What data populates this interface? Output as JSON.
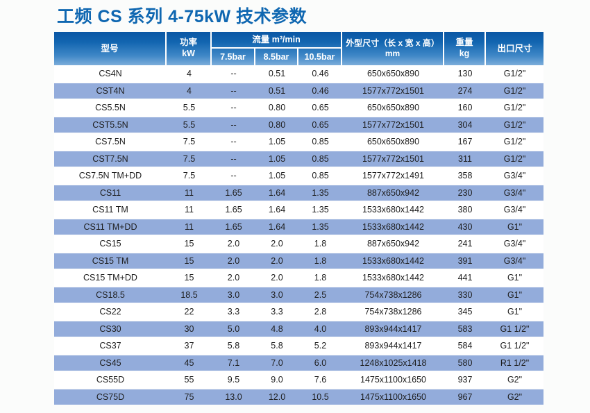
{
  "page": {
    "title": "工频 CS 系列 4-75kW 技术参数"
  },
  "colors": {
    "title_blue": "#0f67b1",
    "header_gradient_top": "#0a56a4",
    "header_gradient_bottom": "#7cadda",
    "row_stripe": "#93acdb",
    "row_text": "#1d1d1d"
  },
  "table": {
    "header": {
      "model": "型号",
      "power_line1": "功率",
      "power_line2": "kW",
      "flow_group": "流量 m³/min",
      "flow_cols": [
        "7.5bar",
        "8.5bar",
        "10.5bar"
      ],
      "dims_line1": "外型尺寸（长 x 宽 x 高）",
      "dims_line2": "mm",
      "weight_line1": "重量",
      "weight_line2": "kg",
      "outlet": "出口尺寸"
    },
    "rows": [
      {
        "model": "CS4N",
        "power": "4",
        "f75": "--",
        "f85": "0.51",
        "f105": "0.46",
        "dims": "650x650x890",
        "weight": "130",
        "outlet": "G1/2\""
      },
      {
        "model": "CST4N",
        "power": "4",
        "f75": "--",
        "f85": "0.51",
        "f105": "0.46",
        "dims": "1577x772x1501",
        "weight": "274",
        "outlet": "G1/2\""
      },
      {
        "model": "CS5.5N",
        "power": "5.5",
        "f75": "--",
        "f85": "0.80",
        "f105": "0.65",
        "dims": "650x650x890",
        "weight": "160",
        "outlet": "G1/2\""
      },
      {
        "model": "CST5.5N",
        "power": "5.5",
        "f75": "--",
        "f85": "0.80",
        "f105": "0.65",
        "dims": "1577x772x1501",
        "weight": "304",
        "outlet": "G1/2\""
      },
      {
        "model": "CS7.5N",
        "power": "7.5",
        "f75": "--",
        "f85": "1.05",
        "f105": "0.85",
        "dims": "650x650x890",
        "weight": "167",
        "outlet": "G1/2\""
      },
      {
        "model": "CST7.5N",
        "power": "7.5",
        "f75": "--",
        "f85": "1.05",
        "f105": "0.85",
        "dims": "1577x772x1501",
        "weight": "311",
        "outlet": "G1/2\""
      },
      {
        "model": "CS7.5N TM+DD",
        "power": "7.5",
        "f75": "--",
        "f85": "1.05",
        "f105": "0.85",
        "dims": "1577x772x1491",
        "weight": "358",
        "outlet": "G3/4\""
      },
      {
        "model": "CS11",
        "power": "11",
        "f75": "1.65",
        "f85": "1.64",
        "f105": "1.35",
        "dims": "887x650x942",
        "weight": "230",
        "outlet": "G3/4\""
      },
      {
        "model": "CS11 TM",
        "power": "11",
        "f75": "1.65",
        "f85": "1.64",
        "f105": "1.35",
        "dims": "1533x680x1442",
        "weight": "380",
        "outlet": "G3/4\""
      },
      {
        "model": "CS11 TM+DD",
        "power": "11",
        "f75": "1.65",
        "f85": "1.64",
        "f105": "1.35",
        "dims": "1533x680x1442",
        "weight": "430",
        "outlet": "G1\""
      },
      {
        "model": "CS15",
        "power": "15",
        "f75": "2.0",
        "f85": "2.0",
        "f105": "1.8",
        "dims": "887x650x942",
        "weight": "241",
        "outlet": "G3/4\""
      },
      {
        "model": "CS15 TM",
        "power": "15",
        "f75": "2.0",
        "f85": "2.0",
        "f105": "1.8",
        "dims": "1533x680x1442",
        "weight": "391",
        "outlet": "G3/4\""
      },
      {
        "model": "CS15 TM+DD",
        "power": "15",
        "f75": "2.0",
        "f85": "2.0",
        "f105": "1.8",
        "dims": "1533x680x1442",
        "weight": "441",
        "outlet": "G1\""
      },
      {
        "model": "CS18.5",
        "power": "18.5",
        "f75": "3.0",
        "f85": "3.0",
        "f105": "2.5",
        "dims": "754x738x1286",
        "weight": "330",
        "outlet": "G1\""
      },
      {
        "model": "CS22",
        "power": "22",
        "f75": "3.3",
        "f85": "3.3",
        "f105": "2.8",
        "dims": "754x738x1286",
        "weight": "345",
        "outlet": "G1\""
      },
      {
        "model": "CS30",
        "power": "30",
        "f75": "5.0",
        "f85": "4.8",
        "f105": "4.0",
        "dims": "893x944x1417",
        "weight": "583",
        "outlet": "G1 1/2\""
      },
      {
        "model": "CS37",
        "power": "37",
        "f75": "5.8",
        "f85": "5.8",
        "f105": "5.2",
        "dims": "893x944x1417",
        "weight": "584",
        "outlet": "G1 1/2\""
      },
      {
        "model": "CS45",
        "power": "45",
        "f75": "7.1",
        "f85": "7.0",
        "f105": "6.0",
        "dims": "1248x1025x1418",
        "weight": "580",
        "outlet": "R1 1/2\""
      },
      {
        "model": "CS55D",
        "power": "55",
        "f75": "9.5",
        "f85": "9.0",
        "f105": "7.6",
        "dims": "1475x1100x1650",
        "weight": "937",
        "outlet": "G2\""
      },
      {
        "model": "CS75D",
        "power": "75",
        "f75": "13.0",
        "f85": "12.0",
        "f105": "10.5",
        "dims": "1475x1100x1650",
        "weight": "967",
        "outlet": "G2\""
      }
    ]
  }
}
